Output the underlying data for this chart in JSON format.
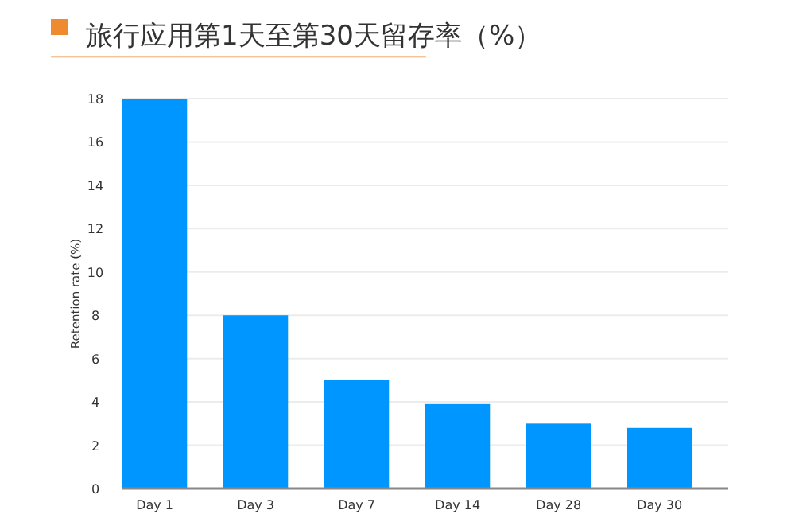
{
  "chart_data": {
    "type": "bar",
    "title": "旅行应用第1天至第30天留存率（%）",
    "ylabel": "Retention rate (%)",
    "categories": [
      "Day 1",
      "Day 3",
      "Day 7",
      "Day 14",
      "Day 28",
      "Day 30"
    ],
    "values": [
      18,
      8,
      5,
      3.9,
      3,
      2.8
    ],
    "color": "#0096ff",
    "ylim": [
      0,
      18
    ],
    "yticks": [
      0,
      2,
      4,
      6,
      8,
      10,
      12,
      14,
      16,
      18
    ],
    "grid": "y"
  }
}
